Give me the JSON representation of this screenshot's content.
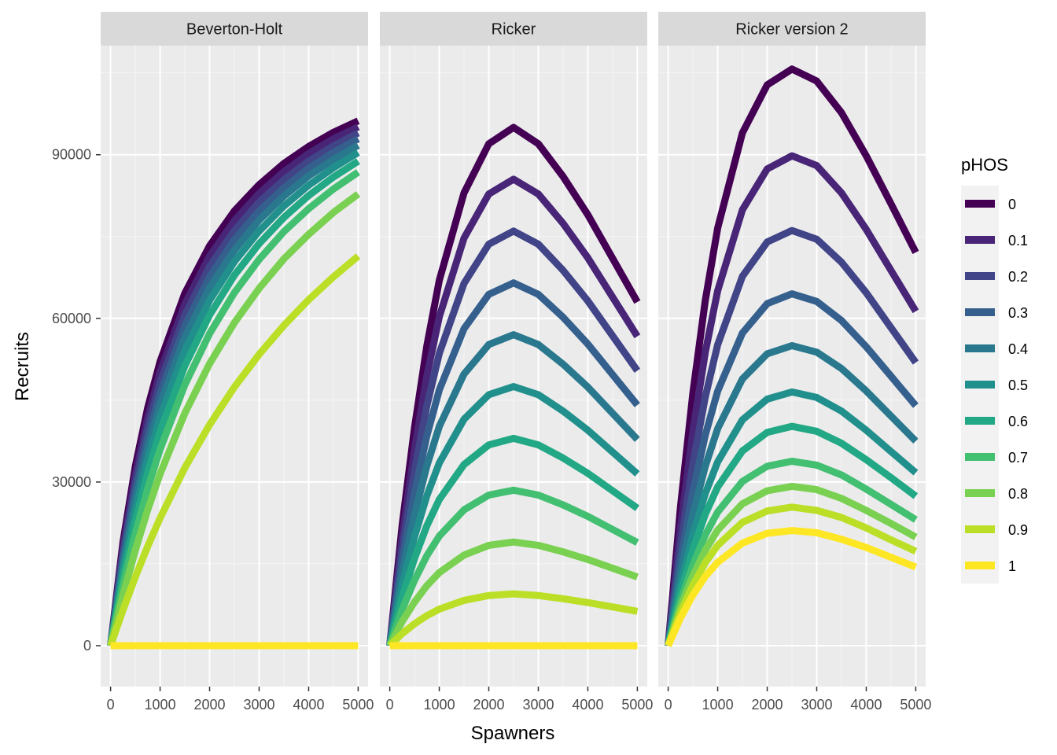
{
  "chart_data": {
    "type": "line",
    "xlabel": "Spawners",
    "ylabel": "Recruits",
    "xlim": [
      -200,
      5200
    ],
    "ylim": [
      -7500,
      110000
    ],
    "x_ticks": [
      0,
      1000,
      2000,
      3000,
      4000,
      5000
    ],
    "y_ticks": [
      0,
      30000,
      60000,
      90000
    ],
    "grid": true,
    "legend": {
      "title": "pHOS",
      "position": "right"
    },
    "facets": [
      {
        "title": "Beverton-Holt",
        "x": [
          0,
          250,
          500,
          750,
          1000,
          1500,
          2000,
          2500,
          3000,
          3500,
          4000,
          4500,
          5000
        ],
        "series": [
          {
            "name": "0",
            "values": [
              0,
              18900,
              32900,
              43600,
              52100,
              64600,
              73300,
              79700,
              84500,
              88400,
              91500,
              94100,
              96200
            ]
          },
          {
            "name": "0.1",
            "values": [
              0,
              17900,
              31300,
              41800,
              50200,
              62600,
              71400,
              77900,
              82900,
              86900,
              90200,
              92900,
              95100
            ]
          },
          {
            "name": "0.2",
            "values": [
              0,
              16800,
              29800,
              40000,
              48200,
              60600,
              69500,
              76100,
              81300,
              85400,
              88800,
              91600,
              94000
            ]
          },
          {
            "name": "0.3",
            "values": [
              0,
              15800,
              28200,
              38100,
              46200,
              58600,
              67600,
              74400,
              79700,
              83900,
              87500,
              90400,
              92900
            ]
          },
          {
            "name": "0.4",
            "values": [
              0,
              14700,
              26600,
              36200,
              44200,
              56500,
              65600,
              72500,
              78000,
              82400,
              86100,
              89100,
              91700
            ]
          },
          {
            "name": "0.5",
            "values": [
              0,
              13600,
              24800,
              34100,
              41900,
              54100,
              63300,
              70400,
              76000,
              80600,
              84400,
              87600,
              90400
            ]
          },
          {
            "name": "0.6",
            "values": [
              0,
              12400,
              22800,
              31700,
              39300,
              51300,
              60600,
              67900,
              73700,
              78500,
              82500,
              85900,
              88800
            ]
          },
          {
            "name": "0.7",
            "values": [
              0,
              11000,
              20500,
              28800,
              36000,
              47800,
              57200,
              64700,
              70800,
              75900,
              80100,
              83700,
              86800
            ]
          },
          {
            "name": "0.8",
            "values": [
              0,
              9200,
              17500,
              24900,
              31500,
              42600,
              51700,
              59200,
              65500,
              70900,
              75400,
              79400,
              82800
            ]
          },
          {
            "name": "0.9",
            "values": [
              0,
              6500,
              12600,
              18200,
              23400,
              32600,
              40500,
              47400,
              53400,
              58700,
              63400,
              67600,
              71400
            ]
          },
          {
            "name": "1",
            "values": [
              0,
              0,
              0,
              0,
              0,
              0,
              0,
              0,
              0,
              0,
              0,
              0,
              0
            ]
          }
        ]
      },
      {
        "title": "Ricker",
        "x": [
          0,
          250,
          500,
          750,
          1000,
          1500,
          2000,
          2500,
          3000,
          3500,
          4000,
          4500,
          5000
        ],
        "series": [
          {
            "name": "0",
            "values": [
              0,
              22000,
              40000,
              55000,
              67000,
              83000,
              92000,
              95000,
              92000,
              86000,
              79000,
              71000,
              63000
            ]
          },
          {
            "name": "0.1",
            "values": [
              0,
              19800,
              36000,
              49500,
              60300,
              74700,
              82800,
              85500,
              82800,
              77400,
              71100,
              63900,
              56700
            ]
          },
          {
            "name": "0.2",
            "values": [
              0,
              17600,
              32000,
              44000,
              53600,
              66400,
              73600,
              76000,
              73600,
              68800,
              63200,
              56800,
              50400
            ]
          },
          {
            "name": "0.3",
            "values": [
              0,
              15400,
              28000,
              38500,
              46900,
              58100,
              64400,
              66500,
              64400,
              60200,
              55300,
              49700,
              44100
            ]
          },
          {
            "name": "0.4",
            "values": [
              0,
              13200,
              24000,
              33000,
              40200,
              49800,
              55200,
              57000,
              55200,
              51600,
              47400,
              42600,
              37800
            ]
          },
          {
            "name": "0.5",
            "values": [
              0,
              11000,
              20000,
              27500,
              33500,
              41500,
              46000,
              47500,
              46000,
              43000,
              39500,
              35500,
              31500
            ]
          },
          {
            "name": "0.6",
            "values": [
              0,
              8800,
              16000,
              22000,
              26800,
              33200,
              36800,
              38000,
              36800,
              34400,
              31600,
              28400,
              25200
            ]
          },
          {
            "name": "0.7",
            "values": [
              0,
              6600,
              12000,
              16500,
              20100,
              24900,
              27600,
              28500,
              27600,
              25800,
              23700,
              21300,
              18900
            ]
          },
          {
            "name": "0.8",
            "values": [
              0,
              4400,
              8000,
              11000,
              13400,
              16600,
              18400,
              19000,
              18400,
              17200,
              15800,
              14200,
              12600
            ]
          },
          {
            "name": "0.9",
            "values": [
              0,
              2200,
              4000,
              5500,
              6700,
              8300,
              9200,
              9500,
              9200,
              8600,
              7900,
              7100,
              6300
            ]
          },
          {
            "name": "1",
            "values": [
              0,
              0,
              0,
              0,
              0,
              0,
              0,
              0,
              0,
              0,
              0,
              0,
              0
            ]
          }
        ]
      },
      {
        "title": "Ricker version 2",
        "x": [
          0,
          250,
          500,
          750,
          1000,
          1500,
          2000,
          2500,
          3000,
          3500,
          4000,
          4500,
          5000
        ],
        "series": [
          {
            "name": "0",
            "values": [
              0,
              25500,
              46400,
              63300,
              76600,
              94000,
              102800,
              105700,
              103500,
              97700,
              89800,
              81000,
              72100
            ]
          },
          {
            "name": "0.1",
            "values": [
              0,
              21700,
              39400,
              53800,
              65100,
              79900,
              87400,
              89800,
              88000,
              83000,
              76300,
              68800,
              61300
            ]
          },
          {
            "name": "0.2",
            "values": [
              0,
              18400,
              33400,
              45600,
              55200,
              67700,
              74000,
              76100,
              74500,
              70300,
              64700,
              58300,
              51900
            ]
          },
          {
            "name": "0.3",
            "values": [
              0,
              15600,
              28300,
              38600,
              46700,
              57300,
              62700,
              64500,
              63100,
              59600,
              54800,
              49400,
              44000
            ]
          },
          {
            "name": "0.4",
            "values": [
              0,
              13300,
              24100,
              32900,
              39800,
              48900,
              53500,
              55000,
              53800,
              50800,
              46700,
              42100,
              37500
            ]
          },
          {
            "name": "0.5",
            "values": [
              0,
              11200,
              20400,
              27900,
              33700,
              41400,
              45200,
              46500,
              45500,
              43000,
              39500,
              35600,
              31700
            ]
          },
          {
            "name": "0.6",
            "values": [
              0,
              9700,
              17600,
              24100,
              29100,
              35700,
              39100,
              40200,
              39300,
              37100,
              34100,
              30800,
              27400
            ]
          },
          {
            "name": "0.7",
            "values": [
              0,
              8200,
              14800,
              20300,
              24500,
              30100,
              32900,
              33800,
              33100,
              31300,
              28700,
              25900,
              23100
            ]
          },
          {
            "name": "0.8",
            "values": [
              0,
              7100,
              12800,
              17500,
              21200,
              26000,
              28400,
              29200,
              28600,
              27000,
              24800,
              22400,
              19900
            ]
          },
          {
            "name": "0.9",
            "values": [
              0,
              6100,
              11100,
              15200,
              18400,
              22600,
              24700,
              25400,
              24800,
              23500,
              21600,
              19400,
              17300
            ]
          },
          {
            "name": "1",
            "values": [
              0,
              5100,
              9300,
              12700,
              15300,
              18800,
              20600,
              21100,
              20700,
              19500,
              18000,
              16200,
              14400
            ]
          }
        ]
      }
    ]
  },
  "colors": {
    "0": "#440154",
    "0.1": "#482576",
    "0.2": "#414487",
    "0.3": "#35608D",
    "0.4": "#2A788E",
    "0.5": "#21908C",
    "0.6": "#22A884",
    "0.7": "#43BF71",
    "0.8": "#7AD151",
    "0.9": "#BBDF27",
    "1": "#FDE725"
  }
}
